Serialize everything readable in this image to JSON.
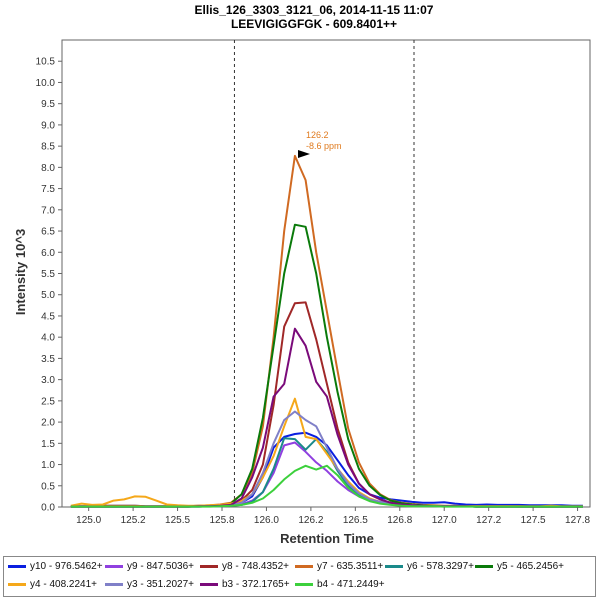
{
  "chart_data": {
    "type": "line",
    "title": "Ellis_126_3303_3121_06, 2014-11-15 11:07",
    "subtitle": "LEEVIGIGGFGK - 609.8401++",
    "xlabel": "Retention Time",
    "ylabel": "Intensity 10^3",
    "xlim": [
      124.85,
      127.82
    ],
    "ylim": [
      0,
      11.0
    ],
    "x_ticks": [
      "125.0",
      "125.2",
      "125.5",
      "125.8",
      "126.0",
      "126.2",
      "126.5",
      "126.8",
      "127.0",
      "127.2",
      "127.5",
      "127.8"
    ],
    "x_tick_values": [
      125.0,
      125.25,
      125.5,
      125.75,
      126.0,
      126.25,
      126.5,
      126.75,
      127.0,
      127.25,
      127.5,
      127.75
    ],
    "y_ticks": [
      "0.0",
      "0.5",
      "1.0",
      "1.5",
      "2.0",
      "2.5",
      "3.0",
      "3.5",
      "4.0",
      "4.5",
      "5.0",
      "5.5",
      "6.0",
      "6.5",
      "7.0",
      "7.5",
      "8.0",
      "8.5",
      "9.0",
      "9.5",
      "10.0",
      "10.5"
    ],
    "y_tick_values": [
      0,
      0.5,
      1,
      1.5,
      2,
      2.5,
      3,
      3.5,
      4,
      4.5,
      5,
      5.5,
      6,
      6.5,
      7,
      7.5,
      8,
      8.5,
      9,
      9.5,
      10,
      10.5
    ],
    "boundaries": [
      125.82,
      126.83
    ],
    "annotation": {
      "x": 126.2,
      "y": 8.3,
      "line1": "126.2",
      "line2": "-8.6 ppm"
    },
    "x": [
      124.9,
      124.96,
      125.02,
      125.08,
      125.14,
      125.2,
      125.26,
      125.32,
      125.38,
      125.44,
      125.5,
      125.56,
      125.62,
      125.68,
      125.74,
      125.8,
      125.86,
      125.92,
      125.98,
      126.04,
      126.1,
      126.16,
      126.22,
      126.28,
      126.34,
      126.4,
      126.46,
      126.52,
      126.58,
      126.64,
      126.7,
      126.76,
      126.82,
      126.88,
      126.94,
      127.0,
      127.06,
      127.12,
      127.18,
      127.24,
      127.3,
      127.36,
      127.42,
      127.48,
      127.54,
      127.6,
      127.66,
      127.72,
      127.78
    ],
    "series": [
      {
        "name": "y10 - 976.5462+",
        "color": "#0a1fe0",
        "values": [
          0.02,
          0.02,
          0.02,
          0.03,
          0.03,
          0.03,
          0.03,
          0.02,
          0.02,
          0.02,
          0.02,
          0.02,
          0.03,
          0.03,
          0.04,
          0.06,
          0.1,
          0.25,
          0.7,
          1.4,
          1.65,
          1.72,
          1.75,
          1.65,
          1.45,
          1.1,
          0.75,
          0.45,
          0.3,
          0.22,
          0.18,
          0.15,
          0.12,
          0.1,
          0.1,
          0.11,
          0.08,
          0.06,
          0.05,
          0.06,
          0.05,
          0.05,
          0.05,
          0.04,
          0.04,
          0.04,
          0.04,
          0.03,
          0.03
        ]
      },
      {
        "name": "y9 - 847.5036+",
        "color": "#9040e0",
        "values": [
          0.01,
          0.01,
          0.01,
          0.01,
          0.01,
          0.01,
          0.01,
          0.01,
          0.01,
          0.01,
          0.01,
          0.01,
          0.01,
          0.02,
          0.02,
          0.03,
          0.06,
          0.15,
          0.35,
          0.8,
          1.45,
          1.52,
          1.3,
          1.05,
          0.85,
          0.6,
          0.4,
          0.25,
          0.15,
          0.1,
          0.07,
          0.05,
          0.04,
          0.03,
          0.03,
          0.02,
          0.02,
          0.02,
          0.02,
          0.02,
          0.02,
          0.02,
          0.01,
          0.01,
          0.01,
          0.01,
          0.01,
          0.01,
          0.01
        ]
      },
      {
        "name": "y8 - 748.4352+",
        "color": "#a02828",
        "values": [
          0.01,
          0.01,
          0.01,
          0.01,
          0.01,
          0.01,
          0.01,
          0.01,
          0.01,
          0.01,
          0.01,
          0.01,
          0.02,
          0.02,
          0.03,
          0.06,
          0.15,
          0.4,
          1.0,
          2.4,
          4.25,
          4.8,
          4.82,
          3.95,
          2.9,
          1.85,
          1.05,
          0.55,
          0.3,
          0.18,
          0.1,
          0.06,
          0.04,
          0.03,
          0.02,
          0.02,
          0.02,
          0.02,
          0.01,
          0.01,
          0.01,
          0.01,
          0.01,
          0.01,
          0.01,
          0.01,
          0.01,
          0.01,
          0.01
        ]
      },
      {
        "name": "y7 - 635.3511+",
        "color": "#d06a22",
        "values": [
          0.02,
          0.02,
          0.02,
          0.03,
          0.03,
          0.03,
          0.03,
          0.02,
          0.02,
          0.02,
          0.02,
          0.02,
          0.03,
          0.04,
          0.06,
          0.1,
          0.3,
          0.8,
          1.9,
          4.0,
          6.5,
          8.27,
          7.7,
          6.0,
          4.6,
          3.2,
          1.85,
          1.05,
          0.55,
          0.3,
          0.16,
          0.1,
          0.07,
          0.05,
          0.04,
          0.03,
          0.03,
          0.02,
          0.02,
          0.02,
          0.02,
          0.02,
          0.02,
          0.01,
          0.01,
          0.01,
          0.01,
          0.01,
          0.01
        ]
      },
      {
        "name": "y6 - 578.3297+",
        "color": "#1a8a8a",
        "values": [
          0.01,
          0.01,
          0.01,
          0.01,
          0.01,
          0.01,
          0.01,
          0.01,
          0.01,
          0.01,
          0.01,
          0.01,
          0.01,
          0.02,
          0.02,
          0.03,
          0.05,
          0.12,
          0.35,
          0.9,
          1.62,
          1.6,
          1.35,
          1.6,
          1.3,
          0.85,
          0.5,
          0.3,
          0.18,
          0.12,
          0.08,
          0.05,
          0.04,
          0.03,
          0.02,
          0.02,
          0.02,
          0.02,
          0.01,
          0.01,
          0.01,
          0.01,
          0.01,
          0.01,
          0.01,
          0.01,
          0.01,
          0.01,
          0.01
        ]
      },
      {
        "name": "y5 - 465.2456+",
        "color": "#0a7a0a",
        "values": [
          0.01,
          0.01,
          0.01,
          0.01,
          0.01,
          0.01,
          0.01,
          0.01,
          0.01,
          0.01,
          0.01,
          0.01,
          0.02,
          0.02,
          0.04,
          0.08,
          0.3,
          0.9,
          2.1,
          3.8,
          5.5,
          6.65,
          6.6,
          5.5,
          4.0,
          2.7,
          1.6,
          0.9,
          0.5,
          0.28,
          0.15,
          0.09,
          0.06,
          0.04,
          0.03,
          0.02,
          0.02,
          0.02,
          0.01,
          0.01,
          0.01,
          0.01,
          0.01,
          0.01,
          0.01,
          0.01,
          0.01,
          0.01,
          0.01
        ]
      },
      {
        "name": "y4 - 408.2241+",
        "color": "#f5a81a",
        "values": [
          0.03,
          0.08,
          0.05,
          0.06,
          0.15,
          0.18,
          0.25,
          0.24,
          0.15,
          0.06,
          0.04,
          0.03,
          0.03,
          0.04,
          0.05,
          0.08,
          0.15,
          0.3,
          0.7,
          1.2,
          1.9,
          2.55,
          1.65,
          1.6,
          1.25,
          0.9,
          0.6,
          0.35,
          0.2,
          0.12,
          0.08,
          0.05,
          0.04,
          0.03,
          0.03,
          0.02,
          0.02,
          0.02,
          0.02,
          0.02,
          0.02,
          0.02,
          0.02,
          0.02,
          0.02,
          0.03,
          0.02,
          0.02,
          0.02
        ]
      },
      {
        "name": "y3 - 351.2027+",
        "color": "#8080c8",
        "values": [
          0.01,
          0.01,
          0.01,
          0.01,
          0.01,
          0.01,
          0.01,
          0.01,
          0.01,
          0.01,
          0.01,
          0.01,
          0.01,
          0.02,
          0.02,
          0.04,
          0.1,
          0.3,
          0.8,
          1.5,
          2.05,
          2.25,
          2.05,
          1.9,
          1.4,
          0.9,
          0.55,
          0.32,
          0.18,
          0.12,
          0.08,
          0.05,
          0.04,
          0.03,
          0.02,
          0.02,
          0.02,
          0.02,
          0.01,
          0.01,
          0.01,
          0.01,
          0.01,
          0.01,
          0.01,
          0.01,
          0.01,
          0.01,
          0.01
        ]
      },
      {
        "name": "b3 - 372.1765+",
        "color": "#7a0a7a",
        "values": [
          0.01,
          0.01,
          0.01,
          0.01,
          0.01,
          0.01,
          0.01,
          0.01,
          0.01,
          0.01,
          0.01,
          0.01,
          0.02,
          0.02,
          0.03,
          0.05,
          0.2,
          0.7,
          1.4,
          2.6,
          2.9,
          4.2,
          3.8,
          2.95,
          2.6,
          1.7,
          1.0,
          0.55,
          0.3,
          0.18,
          0.1,
          0.06,
          0.04,
          0.03,
          0.02,
          0.02,
          0.02,
          0.02,
          0.01,
          0.01,
          0.01,
          0.01,
          0.01,
          0.01,
          0.01,
          0.01,
          0.01,
          0.01,
          0.01
        ]
      },
      {
        "name": "b4 - 471.2449+",
        "color": "#3cd03c",
        "values": [
          0.01,
          0.01,
          0.01,
          0.01,
          0.01,
          0.01,
          0.01,
          0.01,
          0.01,
          0.01,
          0.01,
          0.01,
          0.01,
          0.01,
          0.02,
          0.03,
          0.05,
          0.1,
          0.2,
          0.4,
          0.65,
          0.85,
          0.97,
          0.88,
          0.97,
          0.75,
          0.45,
          0.25,
          0.14,
          0.08,
          0.05,
          0.03,
          0.02,
          0.02,
          0.02,
          0.01,
          0.01,
          0.01,
          0.01,
          0.01,
          0.01,
          0.01,
          0.01,
          0.01,
          0.01,
          0.01,
          0.01,
          0.01,
          0.01
        ]
      }
    ]
  }
}
